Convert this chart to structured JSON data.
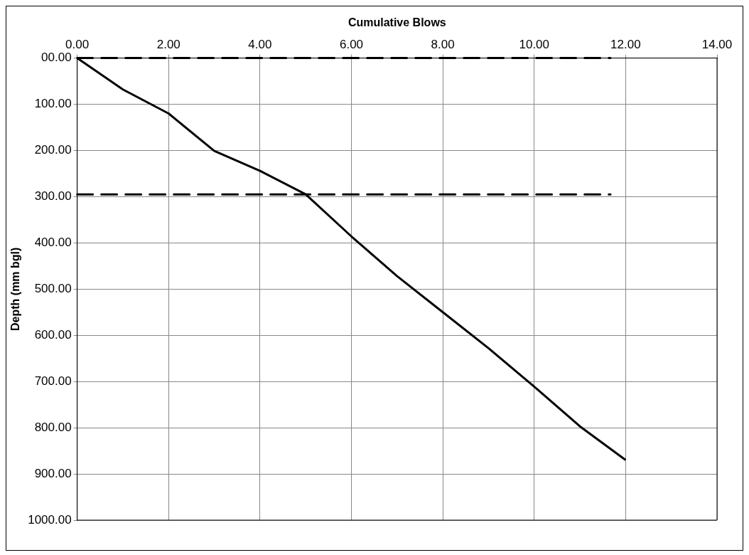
{
  "chart_data": {
    "type": "line",
    "xlabel": "Cumulative Blows",
    "ylabel": "Depth (mm bgl)",
    "x": [
      0,
      1,
      2,
      3,
      4,
      5,
      6,
      7,
      8,
      9,
      10,
      11,
      12
    ],
    "series": [
      {
        "color": "#000000",
        "values": [
          0,
          68,
          120,
          201,
          244,
          295,
          386,
          472,
          550,
          628,
          711,
          797,
          870
        ]
      }
    ],
    "xlim": [
      0,
      14
    ],
    "xticks": [
      {
        "value": 0,
        "label": "0.00"
      },
      {
        "value": 2,
        "label": "2.00"
      },
      {
        "value": 4,
        "label": "4.00"
      },
      {
        "value": 6,
        "label": "6.00"
      },
      {
        "value": 8,
        "label": "8.00"
      },
      {
        "value": 10,
        "label": "10.00"
      },
      {
        "value": 12,
        "label": "12.00"
      },
      {
        "value": 14,
        "label": "14.00"
      }
    ],
    "ylim": [
      1000,
      0
    ],
    "yticks": [
      {
        "value": 0,
        "label": "00.00"
      },
      {
        "value": 100,
        "label": "100.00"
      },
      {
        "value": 200,
        "label": "200.00"
      },
      {
        "value": 300,
        "label": "300.00"
      },
      {
        "value": 400,
        "label": "400.00"
      },
      {
        "value": 500,
        "label": "500.00"
      },
      {
        "value": 600,
        "label": "600.00"
      },
      {
        "value": 700,
        "label": "700.00"
      },
      {
        "value": 800,
        "label": "800.00"
      },
      {
        "value": 900,
        "label": "900.00"
      },
      {
        "value": 1000,
        "label": "1000.00"
      }
    ],
    "ref_lines": [
      {
        "axis": "y",
        "value": 0,
        "color": "#000000",
        "line_style": "dashed"
      },
      {
        "axis": "y",
        "value": 295,
        "color": "#000000",
        "line_style": "dashed"
      }
    ],
    "grid": true,
    "legend": false,
    "marker": "none",
    "line_style": "solid"
  }
}
